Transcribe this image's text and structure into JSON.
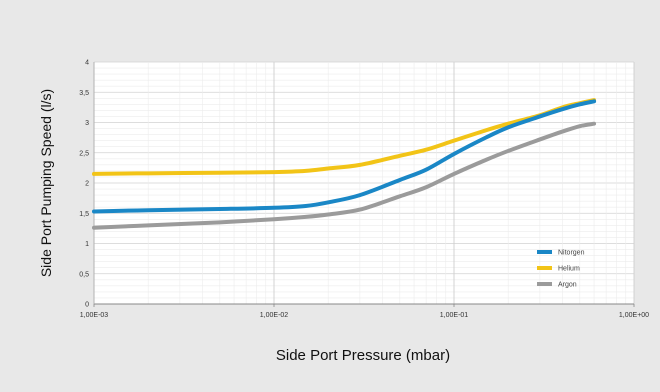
{
  "chart_data": {
    "type": "line",
    "title": "",
    "xlabel": "Side Port Pressure (mbar)",
    "ylabel": "Side Port Pumping Speed (l/s)",
    "x_scale": "log",
    "xlim": [
      0.001,
      1
    ],
    "ylim": [
      0,
      4
    ],
    "x_tick_labels": [
      "1,00E-03",
      "1,00E-02",
      "1,00E-01",
      "1,00E+00"
    ],
    "y_tick_labels": [
      "0",
      "0,5",
      "1",
      "1,5",
      "2",
      "2,5",
      "3",
      "3,5",
      "4"
    ],
    "grid": true,
    "legend_position": "bottom-right",
    "series": [
      {
        "name": "Nitorgen",
        "color": "#1a87c6",
        "x": [
          0.001,
          0.002,
          0.005,
          0.01,
          0.015,
          0.02,
          0.03,
          0.05,
          0.07,
          0.1,
          0.15,
          0.2,
          0.3,
          0.4,
          0.5,
          0.6
        ],
        "y": [
          1.53,
          1.55,
          1.57,
          1.59,
          1.62,
          1.68,
          1.8,
          2.05,
          2.22,
          2.48,
          2.75,
          2.92,
          3.1,
          3.22,
          3.3,
          3.35
        ]
      },
      {
        "name": "Helium",
        "color": "#f2c417",
        "x": [
          0.001,
          0.002,
          0.005,
          0.01,
          0.015,
          0.02,
          0.03,
          0.05,
          0.07,
          0.1,
          0.15,
          0.2,
          0.3,
          0.4,
          0.5,
          0.6
        ],
        "y": [
          2.15,
          2.16,
          2.17,
          2.18,
          2.2,
          2.24,
          2.3,
          2.45,
          2.55,
          2.7,
          2.87,
          2.98,
          3.12,
          3.25,
          3.32,
          3.37
        ]
      },
      {
        "name": "Argon",
        "color": "#9b9b9b",
        "x": [
          0.001,
          0.002,
          0.005,
          0.01,
          0.015,
          0.02,
          0.03,
          0.05,
          0.07,
          0.1,
          0.15,
          0.2,
          0.3,
          0.4,
          0.5,
          0.6
        ],
        "y": [
          1.26,
          1.3,
          1.35,
          1.4,
          1.44,
          1.48,
          1.56,
          1.78,
          1.93,
          2.15,
          2.38,
          2.53,
          2.72,
          2.85,
          2.94,
          2.98
        ]
      }
    ]
  }
}
